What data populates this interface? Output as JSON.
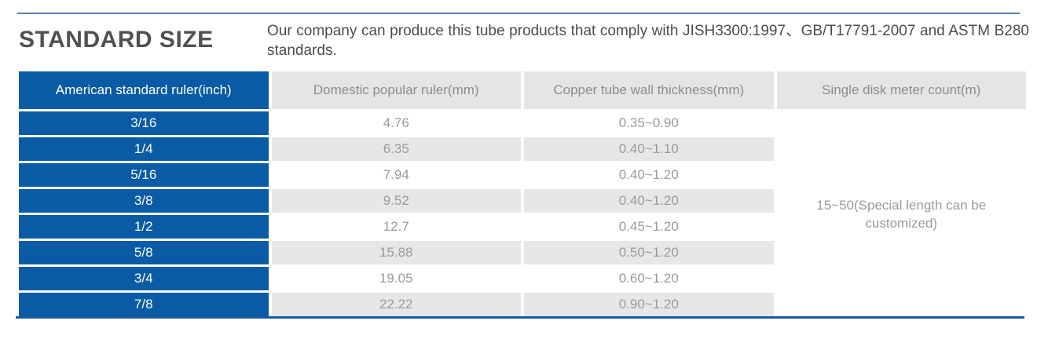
{
  "page": {
    "title": "STANDARD SIZE",
    "description": "Our company can produce this tube products that comply with JISH3300:1997、GB/T17791-2007 and ASTM B280 standards."
  },
  "colors": {
    "blue": "#0a5ba6",
    "top_line": "#4d84b4",
    "bottom_line": "#1b5a9e",
    "header_gray_bg": "#e5e5e5",
    "row_gray_bg": "#e7e7e7",
    "header_text": "#8d8d8d",
    "body_text": "#9a9a9a",
    "title_text": "#515155",
    "desc_text": "#4c4c4c"
  },
  "table": {
    "headers": [
      "American standard ruler(inch)",
      "Domestic popular ruler(mm)",
      "Copper tube wall thickness(mm)",
      "Single disk meter count(m)"
    ],
    "rows": [
      {
        "inch": "3/16",
        "mm": "4.76",
        "thickness": "0.35~0.90"
      },
      {
        "inch": "1/4",
        "mm": "6.35",
        "thickness": "0.40~1.10"
      },
      {
        "inch": "5/16",
        "mm": "7.94",
        "thickness": "0.40~1.20"
      },
      {
        "inch": "3/8",
        "mm": "9.52",
        "thickness": "0.40~1.20"
      },
      {
        "inch": "1/2",
        "mm": "12.7",
        "thickness": "0.45~1.20"
      },
      {
        "inch": "5/8",
        "mm": "15.88",
        "thickness": "0.50~1.20"
      },
      {
        "inch": "3/4",
        "mm": "19.05",
        "thickness": "0.60~1.20"
      },
      {
        "inch": "7/8",
        "mm": "22.22",
        "thickness": "0.90~1.20"
      }
    ],
    "merged_cell": "15~50(Special length can be customized)"
  }
}
